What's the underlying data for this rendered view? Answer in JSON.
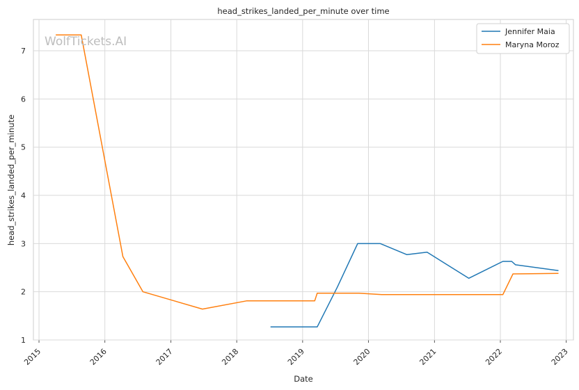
{
  "chart_data": {
    "type": "line",
    "title": "head_strikes_landed_per_minute over time",
    "xlabel": "Date",
    "ylabel": "head_strikes_landed_per_minute",
    "watermark": "WolfTickets.AI",
    "x_ticks": [
      "2015",
      "2016",
      "2017",
      "2018",
      "2019",
      "2020",
      "2021",
      "2022",
      "2023"
    ],
    "y_ticks": [
      "1",
      "2",
      "3",
      "4",
      "5",
      "6",
      "7"
    ],
    "xlim": [
      "2014-12-01",
      "2023-02-10"
    ],
    "ylim": [
      1.0,
      7.65
    ],
    "grid": true,
    "legend_position": "top-right",
    "series": [
      {
        "name": "Jennifer Maia",
        "color": "#1f77b4",
        "points": [
          [
            "2018-07-07",
            1.27
          ],
          [
            "2019-03-23",
            1.27
          ],
          [
            "2019-07-13",
            2.1
          ],
          [
            "2019-11-02",
            3.0
          ],
          [
            "2020-03-07",
            3.0
          ],
          [
            "2020-08-01",
            2.77
          ],
          [
            "2020-11-21",
            2.82
          ],
          [
            "2021-07-10",
            2.28
          ],
          [
            "2022-01-15",
            2.63
          ],
          [
            "2022-03-05",
            2.63
          ],
          [
            "2022-03-26",
            2.56
          ],
          [
            "2022-11-19",
            2.44
          ]
        ]
      },
      {
        "name": "Maryna Moroz",
        "color": "#ff7f0e",
        "points": [
          [
            "2015-04-04",
            7.33
          ],
          [
            "2015-08-23",
            7.33
          ],
          [
            "2016-04-10",
            2.73
          ],
          [
            "2016-07-30",
            2.0
          ],
          [
            "2017-06-25",
            1.64
          ],
          [
            "2018-02-24",
            1.81
          ],
          [
            "2019-03-09",
            1.81
          ],
          [
            "2019-03-23",
            1.97
          ],
          [
            "2019-11-09",
            1.97
          ],
          [
            "2020-03-14",
            1.94
          ],
          [
            "2022-01-15",
            1.94
          ],
          [
            "2022-03-12",
            2.37
          ],
          [
            "2022-11-19",
            2.38
          ]
        ]
      }
    ]
  }
}
